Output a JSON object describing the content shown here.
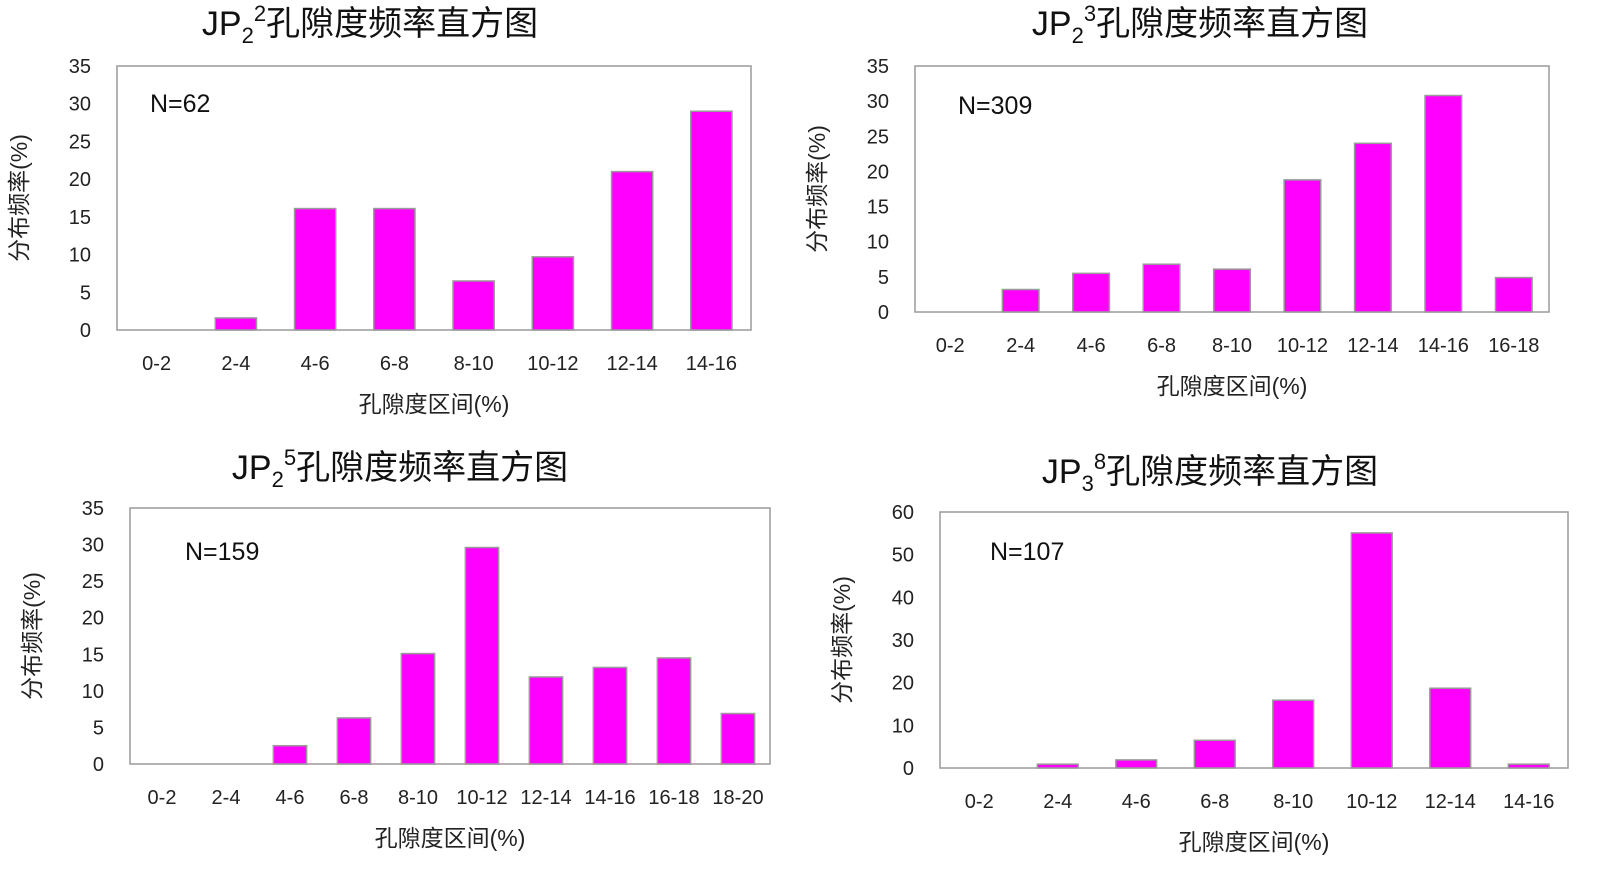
{
  "chart_data": [
    {
      "type": "bar",
      "title_main": "JP",
      "title_sub": "2",
      "title_sup": "2",
      "title_suffix": "孔隙度频率直方图",
      "annotation": "N=62",
      "xlabel": "孔隙度区间(%)",
      "ylabel": "分布频率(%)",
      "ylim": [
        0,
        35
      ],
      "yticks": [
        "0",
        "5",
        "10",
        "15",
        "20",
        "25",
        "30",
        "35"
      ],
      "categories": [
        "0-2",
        "2-4",
        "4-6",
        "6-8",
        "8-10",
        "10-12",
        "12-14",
        "14-16"
      ],
      "values": [
        0,
        1.6,
        16.1,
        16.1,
        6.5,
        9.7,
        21.0,
        29.0
      ],
      "bar_color": "#ff00ff"
    },
    {
      "type": "bar",
      "title_main": "JP",
      "title_sub": "2",
      "title_sup": "3",
      "title_suffix": "孔隙度频率直方图",
      "annotation": "N=309",
      "xlabel": "孔隙度区间(%)",
      "ylabel": "分布频率(%)",
      "ylim": [
        0,
        35
      ],
      "yticks": [
        "0",
        "5",
        "10",
        "15",
        "20",
        "25",
        "30",
        "35"
      ],
      "categories": [
        "0-2",
        "2-4",
        "4-6",
        "6-8",
        "8-10",
        "10-12",
        "12-14",
        "14-16",
        "16-18"
      ],
      "values": [
        0,
        3.2,
        5.5,
        6.8,
        6.1,
        18.8,
        24.0,
        30.8,
        4.9
      ],
      "bar_color": "#ff00ff"
    },
    {
      "type": "bar",
      "title_main": "JP",
      "title_sub": "2",
      "title_sup": "5",
      "title_suffix": "孔隙度频率直方图",
      "annotation": "N=159",
      "xlabel": "孔隙度区间(%)",
      "ylabel": "分布频率(%)",
      "ylim": [
        0,
        35
      ],
      "yticks": [
        "0",
        "5",
        "10",
        "15",
        "20",
        "25",
        "30",
        "35"
      ],
      "categories": [
        "0-2",
        "2-4",
        "4-6",
        "6-8",
        "8-10",
        "10-12",
        "12-14",
        "14-16",
        "16-18",
        "18-20"
      ],
      "values": [
        0,
        0,
        2.5,
        6.3,
        15.1,
        29.6,
        11.9,
        13.2,
        14.5,
        6.9
      ],
      "bar_color": "#ff00ff"
    },
    {
      "type": "bar",
      "title_main": "JP",
      "title_sub": "3",
      "title_sup": "8",
      "title_suffix": "孔隙度频率直方图",
      "annotation": "N=107",
      "xlabel": "孔隙度区间(%)",
      "ylabel": "分布频率(%)",
      "ylim": [
        0,
        60
      ],
      "yticks": [
        "0",
        "10",
        "20",
        "30",
        "40",
        "50",
        "60"
      ],
      "categories": [
        "0-2",
        "2-4",
        "4-6",
        "6-8",
        "8-10",
        "10-12",
        "12-14",
        "14-16"
      ],
      "values": [
        0,
        0.9,
        1.9,
        6.5,
        15.9,
        55.1,
        18.7,
        0.9
      ],
      "bar_color": "#ff00ff"
    }
  ]
}
